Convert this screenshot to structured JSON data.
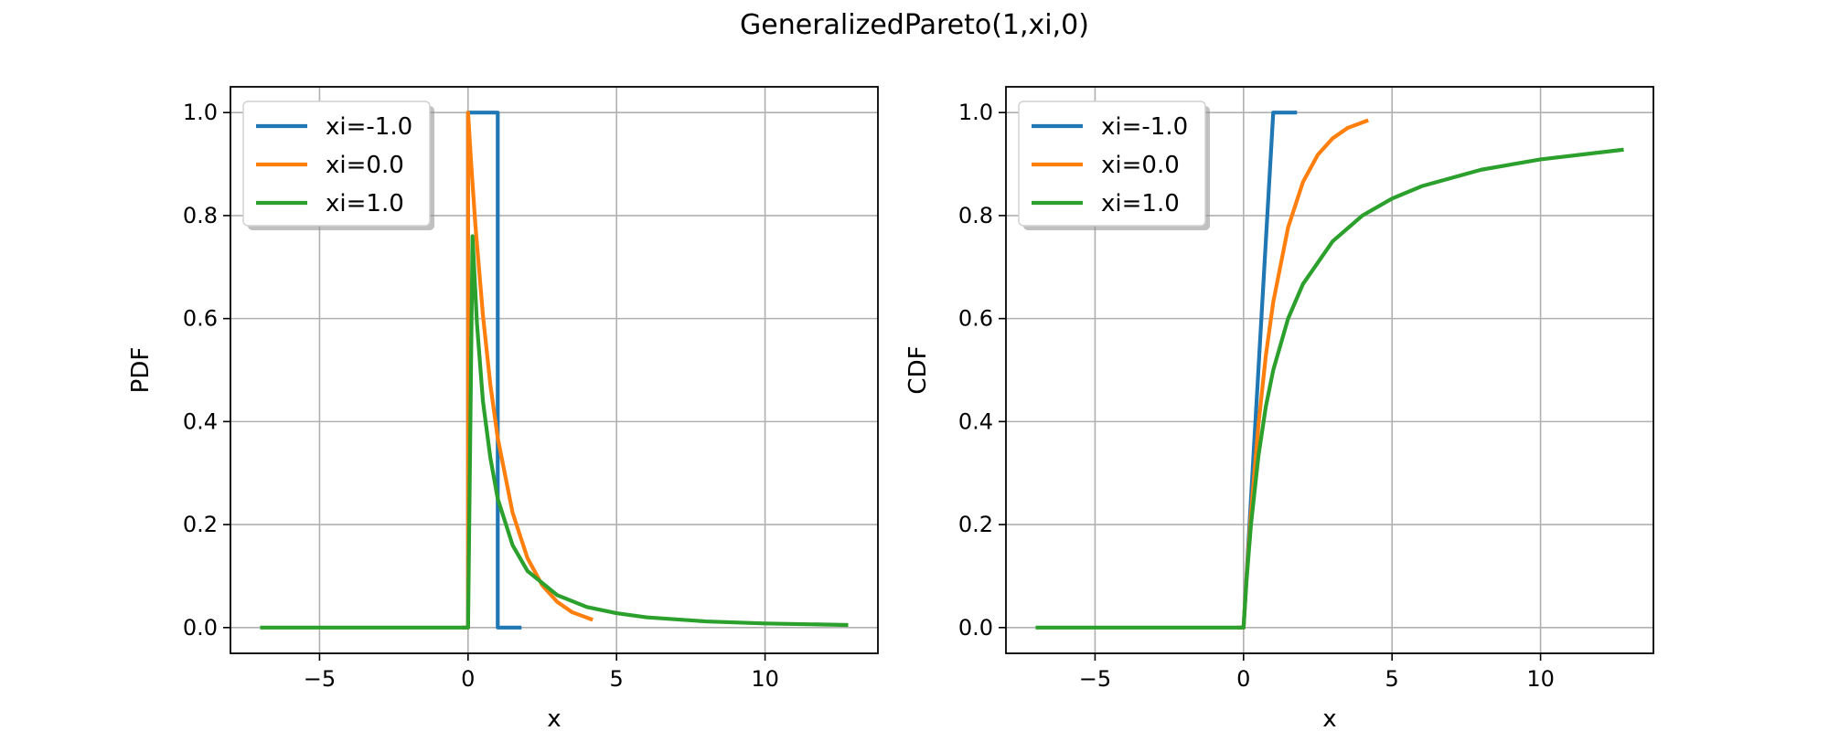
{
  "figure": {
    "title": "GeneralizedPareto(1,xi,0)"
  },
  "colors": {
    "blue": "#1f77b4",
    "orange": "#ff7f0e",
    "green": "#2ca02c",
    "grid": "#b0b0b0"
  },
  "chart_data": [
    {
      "type": "line",
      "title": "",
      "xlabel": "x",
      "ylabel": "PDF",
      "xlim": [
        -8,
        13.8
      ],
      "ylim": [
        -0.05,
        1.05
      ],
      "xticks": [
        -5,
        0,
        5,
        10
      ],
      "xtick_labels": [
        "−5",
        "0",
        "5",
        "10"
      ],
      "yticks": [
        0.0,
        0.2,
        0.4,
        0.6,
        0.8,
        1.0
      ],
      "ytick_labels": [
        "0.0",
        "0.2",
        "0.4",
        "0.6",
        "0.8",
        "1.0"
      ],
      "grid": true,
      "legend_position": "upper-left",
      "series": [
        {
          "name": "xi=-1.0",
          "color": "#1f77b4",
          "x": [
            -0.2,
            0,
            0,
            1,
            1,
            1.8
          ],
          "y": [
            0,
            0,
            1,
            1,
            0,
            0
          ]
        },
        {
          "name": "xi=0.0",
          "color": "#ff7f0e",
          "x": [
            -0.2,
            0,
            0,
            0.1,
            0.25,
            0.5,
            0.75,
            1,
            1.5,
            2,
            2.5,
            3,
            3.5,
            4.2
          ],
          "y": [
            0,
            0,
            1,
            0.905,
            0.779,
            0.607,
            0.472,
            0.368,
            0.223,
            0.135,
            0.082,
            0.05,
            0.03,
            0.015
          ]
        },
        {
          "name": "xi=1.0",
          "color": "#2ca02c",
          "x": [
            -7,
            -1,
            0,
            0.15,
            0.3,
            0.5,
            0.75,
            1,
            1.5,
            2,
            3,
            4,
            5,
            6,
            8,
            10,
            12.8
          ],
          "y": [
            0,
            0,
            0,
            0.76,
            0.59,
            0.44,
            0.33,
            0.25,
            0.16,
            0.11,
            0.063,
            0.04,
            0.028,
            0.02,
            0.012,
            0.008,
            0.005
          ]
        }
      ]
    },
    {
      "type": "line",
      "title": "",
      "xlabel": "x",
      "ylabel": "CDF",
      "xlim": [
        -8,
        13.8
      ],
      "ylim": [
        -0.05,
        1.05
      ],
      "xticks": [
        -5,
        0,
        5,
        10
      ],
      "xtick_labels": [
        "−5",
        "0",
        "5",
        "10"
      ],
      "yticks": [
        0.0,
        0.2,
        0.4,
        0.6,
        0.8,
        1.0
      ],
      "ytick_labels": [
        "0.0",
        "0.2",
        "0.4",
        "0.6",
        "0.8",
        "1.0"
      ],
      "grid": true,
      "legend_position": "upper-left",
      "series": [
        {
          "name": "xi=-1.0",
          "color": "#1f77b4",
          "x": [
            -0.2,
            0,
            1,
            1.8
          ],
          "y": [
            0,
            0,
            1,
            1
          ]
        },
        {
          "name": "xi=0.0",
          "color": "#ff7f0e",
          "x": [
            -0.2,
            0,
            0.1,
            0.25,
            0.5,
            0.75,
            1,
            1.5,
            2,
            2.5,
            3,
            3.5,
            4.2
          ],
          "y": [
            0,
            0,
            0.095,
            0.221,
            0.393,
            0.528,
            0.632,
            0.777,
            0.865,
            0.918,
            0.95,
            0.97,
            0.985
          ]
        },
        {
          "name": "xi=1.0",
          "color": "#2ca02c",
          "x": [
            -7,
            -1,
            0,
            0.1,
            0.25,
            0.5,
            0.75,
            1,
            1.5,
            2,
            3,
            4,
            5,
            6,
            8,
            10,
            12.8
          ],
          "y": [
            0,
            0,
            0,
            0.091,
            0.2,
            0.333,
            0.429,
            0.5,
            0.6,
            0.667,
            0.75,
            0.8,
            0.833,
            0.857,
            0.889,
            0.909,
            0.928
          ]
        }
      ]
    }
  ]
}
